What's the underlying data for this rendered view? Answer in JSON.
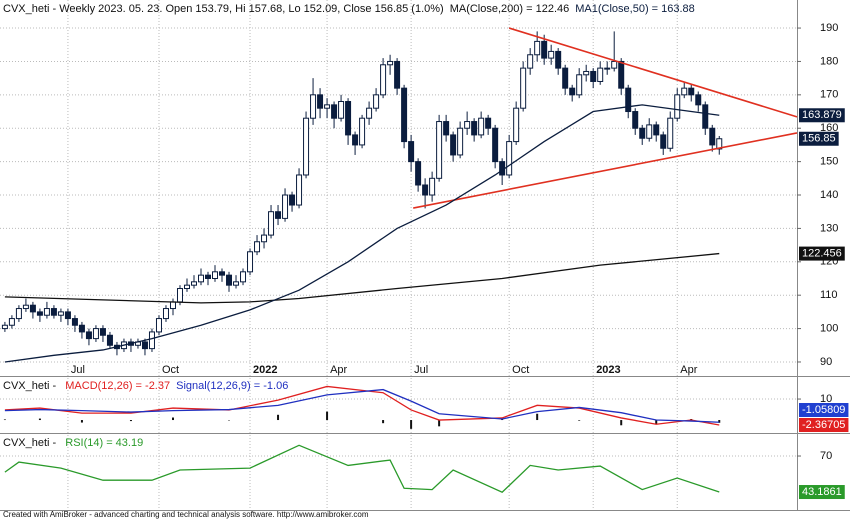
{
  "chart_data": [
    {
      "type": "candlestick",
      "title": "CVX_heti - Weekly 2023. 05. 23. Open 153.79, Hi 157.68, Lo 152.09, Close 156.85 (1.0%)",
      "candles": [
        [
          100,
          102,
          99,
          101
        ],
        [
          101,
          104,
          100,
          103
        ],
        [
          103,
          107,
          102,
          106
        ],
        [
          106,
          109,
          105,
          107
        ],
        [
          107,
          108,
          103,
          105
        ],
        [
          105,
          106,
          102,
          104
        ],
        [
          104,
          108,
          103,
          106
        ],
        [
          106,
          107,
          103,
          104
        ],
        [
          104,
          106,
          102,
          105
        ],
        [
          105,
          106,
          101,
          103
        ],
        [
          103,
          104,
          99,
          101
        ],
        [
          101,
          102,
          97,
          99
        ],
        [
          99,
          100,
          95,
          97
        ],
        [
          97,
          101,
          96,
          100
        ],
        [
          100,
          101,
          96,
          98
        ],
        [
          98,
          99,
          94,
          95
        ],
        [
          95,
          96,
          92,
          94
        ],
        [
          94,
          97,
          93,
          96
        ],
        [
          96,
          97,
          93,
          95
        ],
        [
          95,
          97,
          94,
          96
        ],
        [
          96,
          97,
          92,
          94
        ],
        [
          94,
          100,
          93,
          99
        ],
        [
          99,
          104,
          98,
          103
        ],
        [
          103,
          107,
          102,
          106
        ],
        [
          106,
          109,
          104,
          108
        ],
        [
          108,
          113,
          107,
          112
        ],
        [
          112,
          115,
          111,
          113
        ],
        [
          113,
          116,
          112,
          114
        ],
        [
          114,
          118,
          113,
          116
        ],
        [
          116,
          117,
          113,
          115
        ],
        [
          115,
          119,
          114,
          117
        ],
        [
          117,
          118,
          114,
          116
        ],
        [
          116,
          117,
          111,
          113
        ],
        [
          113,
          116,
          112,
          114
        ],
        [
          114,
          118,
          113,
          117
        ],
        [
          117,
          124,
          116,
          123
        ],
        [
          123,
          128,
          122,
          126
        ],
        [
          126,
          130,
          124,
          128
        ],
        [
          128,
          137,
          127,
          135
        ],
        [
          135,
          137,
          131,
          133
        ],
        [
          133,
          142,
          132,
          140
        ],
        [
          140,
          141,
          135,
          137
        ],
        [
          137,
          148,
          136,
          146
        ],
        [
          146,
          165,
          145,
          163
        ],
        [
          163,
          175,
          161,
          170
        ],
        [
          170,
          172,
          163,
          166
        ],
        [
          166,
          169,
          163,
          167
        ],
        [
          167,
          168,
          160,
          163
        ],
        [
          163,
          170,
          162,
          168
        ],
        [
          168,
          169,
          155,
          158
        ],
        [
          158,
          159,
          152,
          155
        ],
        [
          155,
          164,
          154,
          163
        ],
        [
          163,
          168,
          161,
          166
        ],
        [
          166,
          172,
          165,
          170
        ],
        [
          170,
          181,
          169,
          179
        ],
        [
          179,
          182,
          176,
          180
        ],
        [
          180,
          181,
          170,
          172
        ],
        [
          172,
          173,
          154,
          156
        ],
        [
          156,
          158,
          147,
          150
        ],
        [
          150,
          151,
          141,
          143
        ],
        [
          143,
          145,
          136,
          140
        ],
        [
          140,
          147,
          138,
          145
        ],
        [
          145,
          164,
          144,
          162
        ],
        [
          162,
          164,
          156,
          158
        ],
        [
          158,
          159,
          150,
          152
        ],
        [
          152,
          162,
          151,
          160
        ],
        [
          160,
          165,
          158,
          162
        ],
        [
          162,
          163,
          156,
          158
        ],
        [
          158,
          165,
          157,
          163
        ],
        [
          163,
          164,
          158,
          160
        ],
        [
          160,
          161,
          148,
          150
        ],
        [
          150,
          151,
          143,
          146
        ],
        [
          146,
          158,
          145,
          156
        ],
        [
          156,
          168,
          155,
          166
        ],
        [
          166,
          180,
          165,
          178
        ],
        [
          178,
          184,
          176,
          182
        ],
        [
          182,
          189,
          180,
          186
        ],
        [
          186,
          188,
          179,
          181
        ],
        [
          181,
          185,
          179,
          183
        ],
        [
          183,
          184,
          176,
          178
        ],
        [
          178,
          179,
          170,
          172
        ],
        [
          172,
          173,
          168,
          170
        ],
        [
          170,
          178,
          169,
          176
        ],
        [
          176,
          179,
          174,
          177
        ],
        [
          177,
          178,
          172,
          174
        ],
        [
          174,
          180,
          173,
          178
        ],
        [
          178,
          180,
          176,
          178
        ],
        [
          178,
          189,
          177,
          180
        ],
        [
          180,
          181,
          170,
          172
        ],
        [
          172,
          173,
          163,
          165
        ],
        [
          165,
          166,
          158,
          160
        ],
        [
          160,
          161,
          155,
          157
        ],
        [
          157,
          163,
          156,
          161
        ],
        [
          161,
          162,
          156,
          158
        ],
        [
          158,
          159,
          152,
          154
        ],
        [
          154,
          165,
          153,
          163
        ],
        [
          163,
          172,
          162,
          170
        ],
        [
          170,
          174,
          169,
          172
        ],
        [
          172,
          173,
          168,
          170
        ],
        [
          170,
          171,
          165,
          167
        ],
        [
          167,
          168,
          158,
          160
        ],
        [
          160,
          161,
          153,
          155
        ],
        [
          153.79,
          157.68,
          152.09,
          156.85
        ]
      ],
      "close_label": "156.85",
      "up_color": "#ffffff",
      "down_color": "#0b1d3e",
      "xlim": [
        -0.7,
        113.1
      ],
      "xticks": [
        {
          "value": 9,
          "label": "Jul"
        },
        {
          "value": 22,
          "label": "Oct"
        },
        {
          "value": 35,
          "label": "2022"
        },
        {
          "value": 46,
          "label": "Apr"
        },
        {
          "value": 58,
          "label": "Jul"
        },
        {
          "value": 72,
          "label": "Oct"
        },
        {
          "value": 84,
          "label": "2023"
        },
        {
          "value": 96,
          "label": "Apr"
        }
      ],
      "ylim": [
        86.1,
        198.4
      ],
      "yticks": [
        90,
        100,
        110,
        120,
        130,
        140,
        150,
        160,
        170,
        180,
        190
      ],
      "grid": true,
      "series": [
        {
          "name": "MA(Close,200) = 122.46",
          "color": "#111111",
          "label_bg": "#111111",
          "x": [
            0,
            14,
            28,
            35,
            42,
            56,
            71,
            85,
            102
          ],
          "values": [
            109.5,
            108.6,
            107.7,
            108,
            109,
            112,
            115,
            119,
            122.46
          ],
          "value_label": "122.456"
        },
        {
          "name": "MA1(Close,50) = 163.88",
          "color": "#0b1d3e",
          "label_bg": "#0b1d3e",
          "x": [
            0,
            7,
            14,
            21,
            28,
            35,
            42,
            49,
            56,
            63,
            70,
            77,
            84,
            91,
            98,
            102
          ],
          "values": [
            90,
            92,
            93.6,
            97,
            101,
            105.6,
            111.5,
            120,
            130,
            137,
            146,
            156,
            165,
            167,
            165,
            163.88
          ],
          "value_label": "163.879"
        }
      ],
      "trendlines": [
        {
          "color": "#e03020",
          "x": [
            72,
            113.1
          ],
          "values": [
            190,
            163.4
          ]
        },
        {
          "color": "#e03020",
          "x": [
            58.3,
            113.1
          ],
          "values": [
            136.1,
            158.6
          ]
        }
      ]
    },
    {
      "type": "macd",
      "title": "CVX_heti - ",
      "xlim": [
        -0.7,
        113.1
      ],
      "ylim": [
        -5.7,
        20.5
      ],
      "yticks": [
        10
      ],
      "grid": true,
      "series": [
        {
          "name": "MACD(12,26) = -2.37",
          "color": "#e02020",
          "label_bg": "#e02020",
          "x": [
            0,
            5,
            11,
            18,
            24,
            32,
            39,
            46,
            54,
            58,
            62,
            71,
            76,
            82,
            88,
            93,
            98,
            102
          ],
          "values": [
            4.8,
            5.7,
            3.3,
            3.3,
            5.7,
            4.8,
            9.5,
            16,
            13,
            4.8,
            0,
            1,
            7,
            5.7,
            1,
            -2,
            0,
            -2.37
          ],
          "value_label": "-2.36705"
        },
        {
          "name": "Signal(12,26,9) = -1.06",
          "color": "#2030c0",
          "label_bg": "#2040d0",
          "x": [
            0,
            5,
            11,
            18,
            24,
            32,
            39,
            46,
            54,
            58,
            62,
            71,
            76,
            82,
            88,
            93,
            98,
            102
          ],
          "values": [
            4.5,
            5,
            4.5,
            3.8,
            4.5,
            5,
            7,
            12,
            14.5,
            9,
            3,
            0.5,
            4,
            6,
            3.5,
            0,
            -0.5,
            -1.06
          ],
          "value_label": "-1.05809"
        }
      ],
      "histogram": {
        "color": "#111111",
        "x": [
          0,
          5,
          11,
          18,
          24,
          32,
          39,
          46,
          54,
          58,
          62,
          71,
          76,
          82,
          88,
          93,
          98,
          102
        ],
        "values": [
          0.3,
          0.7,
          -1.2,
          -0.5,
          1.2,
          -0.2,
          2.5,
          4,
          -1.5,
          -4.2,
          -3,
          0.5,
          3,
          -0.3,
          -2.5,
          -2,
          0.5,
          -1.31
        ]
      }
    },
    {
      "type": "rsi",
      "title": "CVX_heti - ",
      "xlim": [
        -0.7,
        113.1
      ],
      "ylim": [
        29.8,
        86.4
      ],
      "yticks": [
        70
      ],
      "grid": true,
      "series": [
        {
          "name": "RSI(14) = 43.19",
          "color": "#2a9a2a",
          "label_bg": "#2a9a2a",
          "x": [
            0,
            2,
            8,
            14,
            21,
            25,
            35,
            42,
            49,
            55,
            57,
            61,
            64,
            71,
            75,
            79,
            85,
            91,
            96,
            102
          ],
          "values": [
            58,
            65.5,
            61,
            52,
            52,
            59.6,
            61,
            78,
            63,
            67,
            46,
            45,
            59.6,
            43,
            63,
            59.6,
            62.5,
            45,
            53.6,
            43.19
          ],
          "value_label": "43.1861"
        }
      ]
    }
  ],
  "footer": "Created with AmiBroker - advanced charting and technical analysis software. http://www.amibroker.com"
}
